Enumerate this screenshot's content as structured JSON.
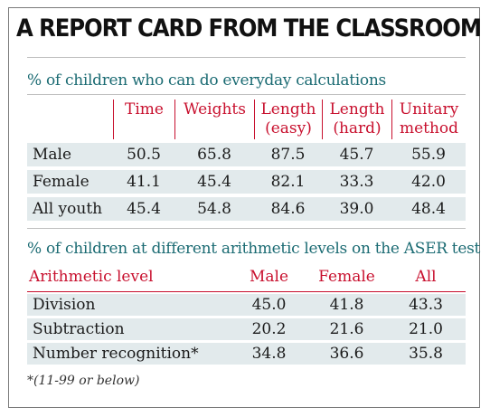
{
  "headline": "A REPORT CARD FROM THE CLASSROOM",
  "colors": {
    "accent": "#c8102e",
    "title_teal": "#1b6b73",
    "row_shading": "#e2eaec"
  },
  "chart_data": [
    {
      "type": "table",
      "title": "% of children who can do everyday calculations",
      "columns": [
        [
          "Time"
        ],
        [
          "Weights"
        ],
        [
          "Length",
          "(easy)"
        ],
        [
          "Length",
          "(hard)"
        ],
        [
          "Unitary",
          "method"
        ]
      ],
      "rows": [
        {
          "label": "Male",
          "values": [
            "50.5",
            "65.8",
            "87.5",
            "45.7",
            "55.9"
          ]
        },
        {
          "label": "Female",
          "values": [
            "41.1",
            "45.4",
            "82.1",
            "33.3",
            "42.0"
          ]
        },
        {
          "label": "All youth",
          "values": [
            "45.4",
            "54.8",
            "84.6",
            "39.0",
            "48.4"
          ]
        }
      ]
    },
    {
      "type": "table",
      "title": "% of children at different arithmetic levels on the ASER test",
      "row_header": "Arithmetic level",
      "columns": [
        "Male",
        "Female",
        "All"
      ],
      "rows": [
        {
          "label": "Division",
          "values": [
            "45.0",
            "41.8",
            "43.3"
          ]
        },
        {
          "label": "Subtraction",
          "values": [
            "20.2",
            "21.6",
            "21.0"
          ]
        },
        {
          "label": "Number recognition*",
          "values": [
            "34.8",
            "36.6",
            "35.8"
          ]
        }
      ]
    }
  ],
  "footnote": "*(11-99 or below)"
}
